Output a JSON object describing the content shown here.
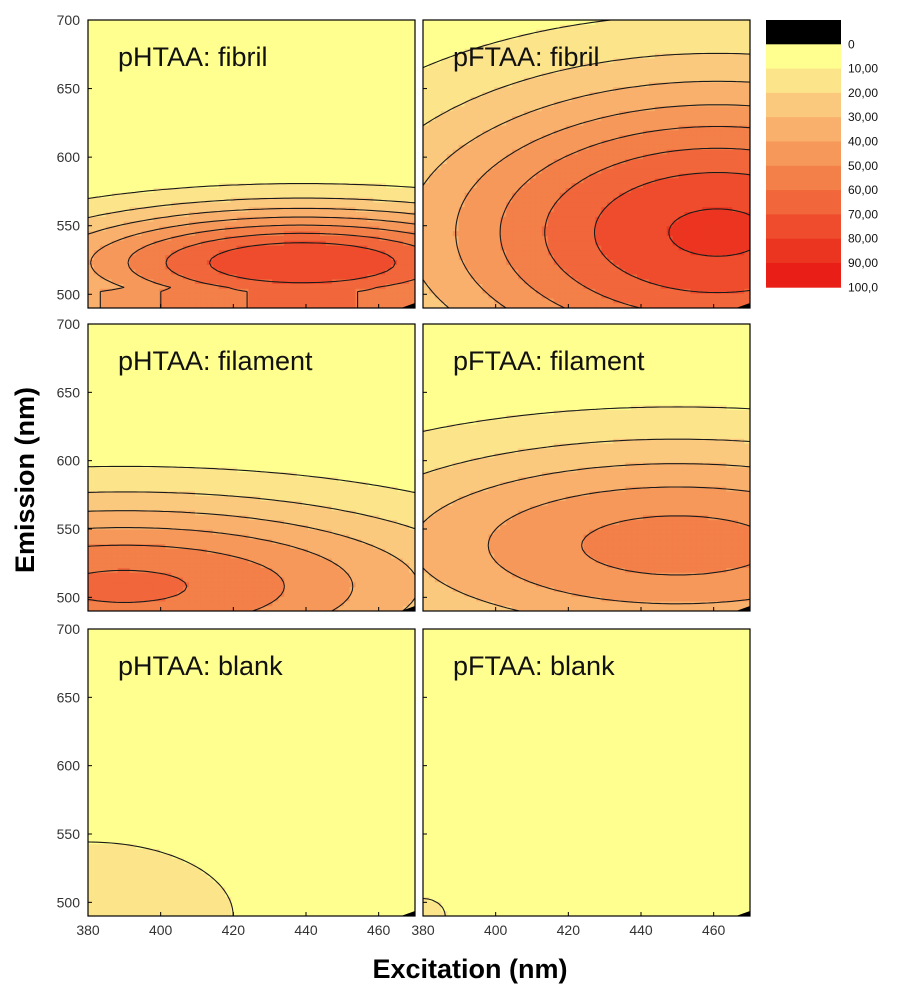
{
  "chart_data": [
    {
      "type": "heatmap",
      "title": "pHTAA: fibril",
      "xlabel": "Excitation (nm)",
      "ylabel": "Emission (nm)",
      "xlim": [
        380,
        470
      ],
      "ylim": [
        490,
        700
      ],
      "xticks": [
        380,
        400,
        420,
        440,
        460
      ],
      "yticks": [
        500,
        550,
        600,
        650,
        700
      ],
      "peak": {
        "x": 439,
        "y": 523,
        "value": 80
      },
      "widths": {
        "x": 70,
        "y": 40
      },
      "floor_value": 62,
      "floor_below": 505
    },
    {
      "type": "heatmap",
      "title": "pFTAA: fibril",
      "xlabel": "Excitation (nm)",
      "ylabel": "Emission (nm)",
      "xlim": [
        380,
        470
      ],
      "ylim": [
        490,
        700
      ],
      "xticks": [
        380,
        400,
        420,
        440,
        460
      ],
      "yticks": [
        500,
        550,
        600,
        650,
        700
      ],
      "peak": {
        "x": 461,
        "y": 545,
        "value": 82
      },
      "widths": {
        "x": 85,
        "y": 110
      }
    },
    {
      "type": "heatmap",
      "title": "pHTAA: filament",
      "xlabel": "Excitation (nm)",
      "ylabel": "Emission (nm)",
      "xlim": [
        380,
        470
      ],
      "ylim": [
        490,
        700
      ],
      "xticks": [
        380,
        400,
        420,
        440,
        460
      ],
      "yticks": [
        500,
        550,
        600,
        650,
        700
      ],
      "peak": {
        "x": 390,
        "y": 508,
        "value": 62
      },
      "widths": {
        "x": 95,
        "y": 65
      }
    },
    {
      "type": "heatmap",
      "title": "pFTAA: filament",
      "xlabel": "Excitation (nm)",
      "ylabel": "Emission (nm)",
      "xlim": [
        380,
        470
      ],
      "ylim": [
        490,
        700
      ],
      "xticks": [
        380,
        400,
        420,
        440,
        460
      ],
      "yticks": [
        500,
        550,
        600,
        650,
        700
      ],
      "peak": {
        "x": 450,
        "y": 538,
        "value": 54
      },
      "widths": {
        "x": 95,
        "y": 78
      }
    },
    {
      "type": "heatmap",
      "title": "pHTAA: blank",
      "xlabel": "Excitation (nm)",
      "ylabel": "Emission (nm)",
      "xlim": [
        380,
        470
      ],
      "ylim": [
        490,
        700
      ],
      "xticks": [
        380,
        400,
        420,
        440,
        460
      ],
      "yticks": [
        500,
        550,
        600,
        650,
        700
      ],
      "peak": {
        "x": 380,
        "y": 490,
        "value": 20
      },
      "widths": {
        "x": 48,
        "y": 65
      }
    },
    {
      "type": "heatmap",
      "title": "pFTAA: blank",
      "xlabel": "Excitation (nm)",
      "ylabel": "Emission (nm)",
      "xlim": [
        380,
        470
      ],
      "ylim": [
        490,
        700
      ],
      "xticks": [
        380,
        400,
        420,
        440,
        460
      ],
      "yticks": [
        500,
        550,
        600,
        650,
        700
      ],
      "peak": {
        "x": 380,
        "y": 490,
        "value": 13
      },
      "widths": {
        "x": 12,
        "y": 25
      }
    }
  ],
  "legend": {
    "labels": [
      "0",
      "10,00",
      "20,00",
      "30,00",
      "40,00",
      "50,00",
      "60,00",
      "70,00",
      "80,00",
      "90,00",
      "100,0"
    ],
    "colors": [
      "#000000",
      "#FFFF90",
      "#FCE48A",
      "#FAC97E",
      "#F8B06C",
      "#F6985A",
      "#F37F49",
      "#F1663A",
      "#EE4C2C",
      "#EC3520",
      "#E91E16"
    ]
  },
  "axes": {
    "xlabel": "Excitation (nm)",
    "ylabel": "Emission (nm)"
  },
  "colors": {
    "background": "#FFFF90",
    "contour": "#1a1a1a",
    "frame": "#000000"
  }
}
